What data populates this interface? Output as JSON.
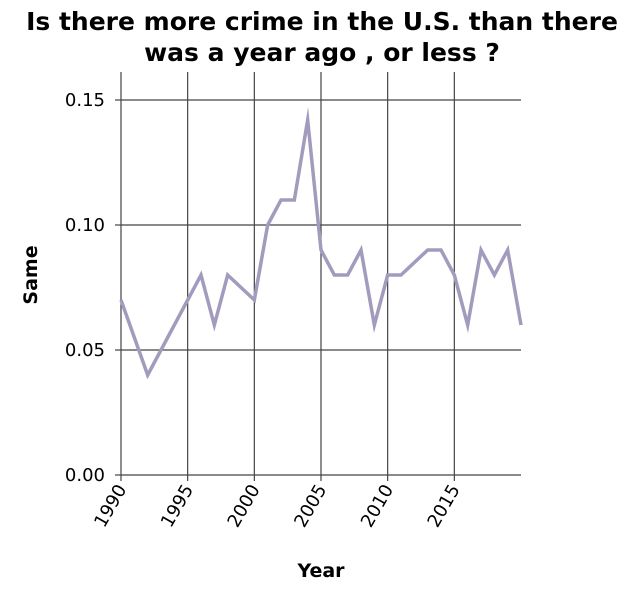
{
  "chart_data": {
    "type": "line",
    "title_lines": [
      "Is there more crime in the U.S. than there",
      "was a year ago , or less ?"
    ],
    "xlabel": "Year",
    "ylabel": "Same",
    "xlim": [
      1990,
      2020
    ],
    "ylim": [
      0,
      0.15
    ],
    "x_ticks": [
      1990,
      1995,
      2000,
      2005,
      2010,
      2015
    ],
    "x_tick_labels": [
      "1990",
      "1995",
      "2000",
      "2005",
      "2010",
      "2015"
    ],
    "y_ticks": [
      0,
      0.05,
      0.1,
      0.15
    ],
    "y_tick_labels": [
      "0.00",
      "0.05",
      "0.10",
      "0.15"
    ],
    "grid": true,
    "series": [
      {
        "color": "#a39bbd",
        "x": [
          1990,
          1992,
          1996,
          1997,
          1998,
          2000,
          2001,
          2002,
          2003,
          2004,
          2005,
          2006,
          2007,
          2008,
          2009,
          2010,
          2011,
          2013,
          2014,
          2015,
          2016,
          2017,
          2018,
          2019,
          2020
        ],
        "y": [
          0.07,
          0.04,
          0.08,
          0.06,
          0.08,
          0.07,
          0.1,
          0.11,
          0.11,
          0.142,
          0.09,
          0.08,
          0.08,
          0.09,
          0.06,
          0.08,
          0.08,
          0.09,
          0.09,
          0.08,
          0.06,
          0.09,
          0.08,
          0.09,
          0.06
        ]
      }
    ]
  }
}
